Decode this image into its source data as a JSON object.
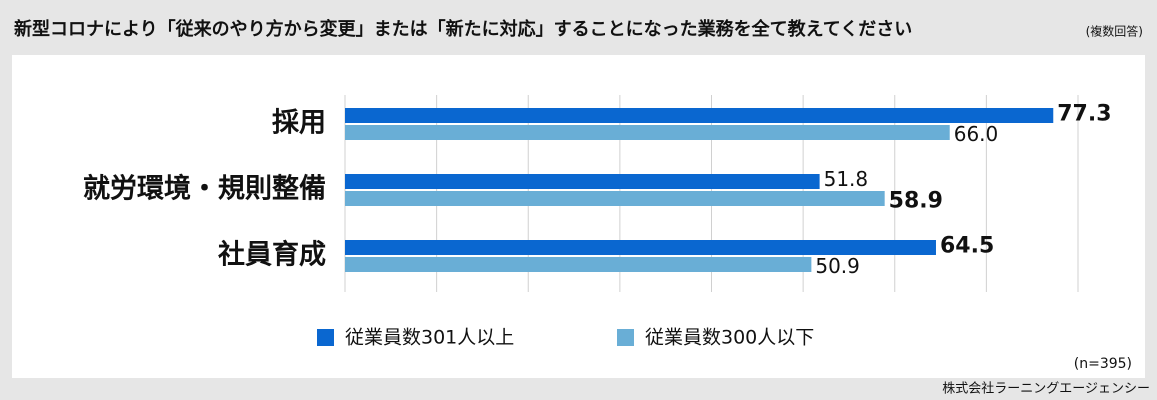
{
  "chart_data": {
    "type": "hbar",
    "title": "新型コロナにより「従来のやり方から変更」または「新たに対応」することになった業務を全て教えてください",
    "subtitle": "(複数回答)",
    "categories": [
      "採用",
      "就労環境・規則整備",
      "社員育成"
    ],
    "series": [
      {
        "name": "従業員数301人以上",
        "color": "#0a67d0",
        "values": [
          77.3,
          51.8,
          64.5
        ],
        "value_labels": [
          "77.3",
          "51.8",
          "64.5"
        ]
      },
      {
        "name": "従業員数300人以下",
        "color": "#69aed6",
        "values": [
          66.0,
          58.9,
          50.9
        ],
        "value_labels": [
          "66.0",
          "58.9",
          "50.9"
        ]
      }
    ],
    "xlim": [
      0,
      80
    ],
    "xticks": [
      0,
      10,
      20,
      30,
      40,
      50,
      60,
      70,
      80
    ],
    "grid": true,
    "note": "(n=395)",
    "source": "株式会社ラーニングエージェンシー"
  }
}
